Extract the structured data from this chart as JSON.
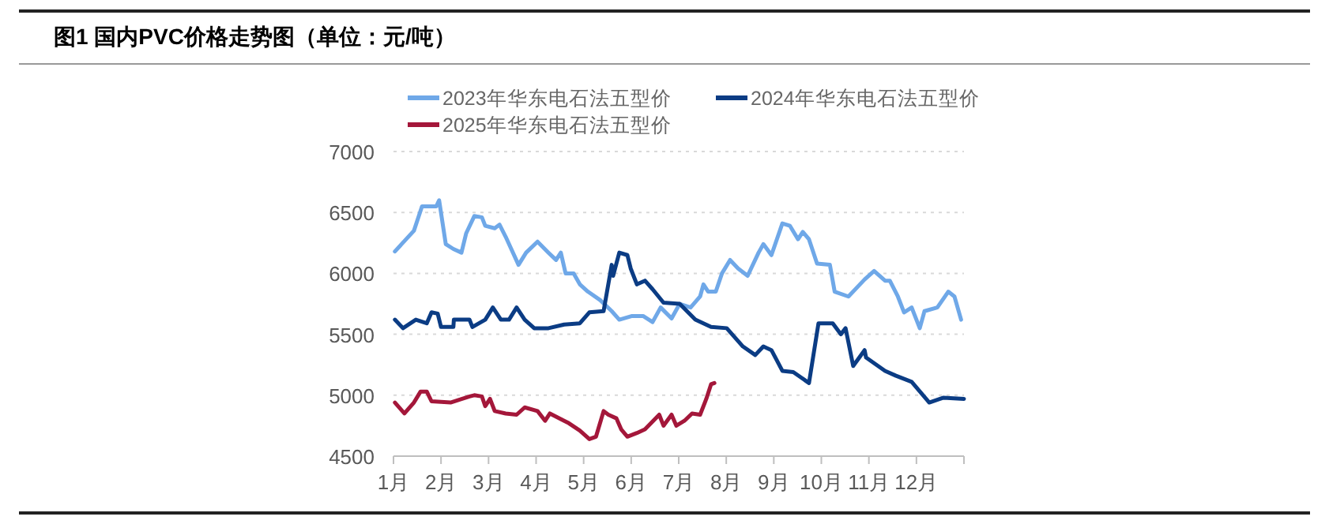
{
  "chart_data": {
    "type": "line",
    "title": "图1  国内PVC价格走势图（单位：元/吨）",
    "xlim": [
      1,
      13
    ],
    "xticks": [
      {
        "value": 1,
        "label": "1月"
      },
      {
        "value": 2,
        "label": "2月"
      },
      {
        "value": 3,
        "label": "3月"
      },
      {
        "value": 4,
        "label": "4月"
      },
      {
        "value": 5,
        "label": "5月"
      },
      {
        "value": 6,
        "label": "6月"
      },
      {
        "value": 7,
        "label": "7月"
      },
      {
        "value": 8,
        "label": "8月"
      },
      {
        "value": 9,
        "label": "9月"
      },
      {
        "value": 10,
        "label": "10月"
      },
      {
        "value": 11,
        "label": "11月"
      },
      {
        "value": 12,
        "label": "12月"
      },
      {
        "value": 13,
        "label": null
      }
    ],
    "ylim": [
      4500,
      7000
    ],
    "yticks": [
      4500,
      5000,
      5500,
      6000,
      6500,
      7000
    ],
    "grid": "y",
    "legend": "top",
    "marker": "none",
    "line_style": "solid",
    "series": [
      {
        "name": "2023年华东电石法五型价",
        "color": "#6fa8e8",
        "x": [
          1.03,
          1.43,
          1.6,
          1.9,
          1.96,
          2.1,
          2.26,
          2.43,
          2.53,
          2.7,
          2.86,
          2.93,
          3.13,
          3.23,
          3.36,
          3.63,
          3.79,
          4.03,
          4.26,
          4.42,
          4.52,
          4.62,
          4.79,
          4.92,
          5.09,
          5.35,
          5.59,
          5.75,
          6.02,
          6.25,
          6.45,
          6.62,
          6.85,
          7.02,
          7.25,
          7.45,
          7.52,
          7.62,
          7.78,
          7.91,
          8.08,
          8.25,
          8.45,
          8.68,
          8.78,
          8.95,
          9.18,
          9.34,
          9.51,
          9.61,
          9.74,
          9.91,
          10.18,
          10.28,
          10.57,
          10.91,
          11.11,
          11.34,
          11.44,
          11.61,
          11.74,
          11.9,
          12.07,
          12.17,
          12.44,
          12.67,
          12.8,
          12.94
        ],
        "values": [
          6180,
          6350,
          6550,
          6550,
          6600,
          6240,
          6200,
          6170,
          6330,
          6470,
          6460,
          6390,
          6370,
          6400,
          6300,
          6070,
          6170,
          6260,
          6170,
          6110,
          6170,
          6000,
          6000,
          5910,
          5850,
          5780,
          5690,
          5620,
          5650,
          5650,
          5600,
          5720,
          5630,
          5750,
          5720,
          5810,
          5910,
          5850,
          5850,
          6000,
          6110,
          6040,
          5980,
          6170,
          6240,
          6150,
          6410,
          6390,
          6280,
          6340,
          6280,
          6080,
          6070,
          5850,
          5810,
          5950,
          6020,
          5940,
          5940,
          5810,
          5680,
          5720,
          5550,
          5690,
          5720,
          5850,
          5810,
          5620
        ]
      },
      {
        "name": "2024年华东电石法五型价",
        "color": "#0b3c84",
        "x": [
          1.03,
          1.2,
          1.47,
          1.7,
          1.8,
          1.93,
          2.0,
          2.26,
          2.27,
          2.6,
          2.66,
          2.93,
          3.09,
          3.26,
          3.43,
          3.59,
          3.76,
          3.96,
          4.26,
          4.59,
          4.92,
          5.12,
          5.42,
          5.59,
          5.62,
          5.75,
          5.92,
          5.99,
          6.12,
          6.29,
          6.45,
          6.68,
          7.02,
          7.35,
          7.68,
          8.01,
          8.35,
          8.61,
          8.78,
          8.95,
          9.18,
          9.41,
          9.74,
          9.94,
          10.24,
          10.41,
          10.51,
          10.67,
          10.91,
          10.94,
          11.34,
          11.57,
          11.9,
          12.27,
          12.57,
          13.0
        ],
        "values": [
          5620,
          5550,
          5620,
          5590,
          5680,
          5670,
          5560,
          5560,
          5620,
          5620,
          5560,
          5620,
          5720,
          5620,
          5620,
          5720,
          5620,
          5550,
          5550,
          5580,
          5590,
          5680,
          5690,
          6070,
          5980,
          6170,
          6150,
          6040,
          5910,
          5940,
          5870,
          5760,
          5750,
          5620,
          5560,
          5550,
          5400,
          5330,
          5400,
          5370,
          5200,
          5190,
          5100,
          5590,
          5590,
          5500,
          5550,
          5240,
          5370,
          5310,
          5200,
          5160,
          5110,
          4940,
          4980,
          4970
        ]
      },
      {
        "name": "2025年华东电石法五型价",
        "color": "#a4173a",
        "x": [
          1.03,
          1.23,
          1.43,
          1.57,
          1.7,
          1.8,
          2.2,
          2.6,
          2.7,
          2.86,
          2.93,
          3.03,
          3.13,
          3.36,
          3.59,
          3.76,
          4.03,
          4.19,
          4.29,
          4.59,
          4.69,
          4.92,
          5.12,
          5.26,
          5.42,
          5.52,
          5.69,
          5.79,
          5.92,
          6.12,
          6.29,
          6.59,
          6.68,
          6.85,
          6.95,
          7.12,
          7.28,
          7.45,
          7.58,
          7.68,
          7.75
        ],
        "values": [
          4940,
          4850,
          4940,
          5030,
          5030,
          4950,
          4940,
          4990,
          5000,
          4990,
          4910,
          4970,
          4870,
          4850,
          4840,
          4900,
          4870,
          4790,
          4850,
          4790,
          4770,
          4710,
          4640,
          4660,
          4870,
          4840,
          4810,
          4720,
          4660,
          4690,
          4720,
          4840,
          4750,
          4840,
          4750,
          4790,
          4850,
          4840,
          4970,
          5090,
          5100
        ]
      }
    ]
  }
}
